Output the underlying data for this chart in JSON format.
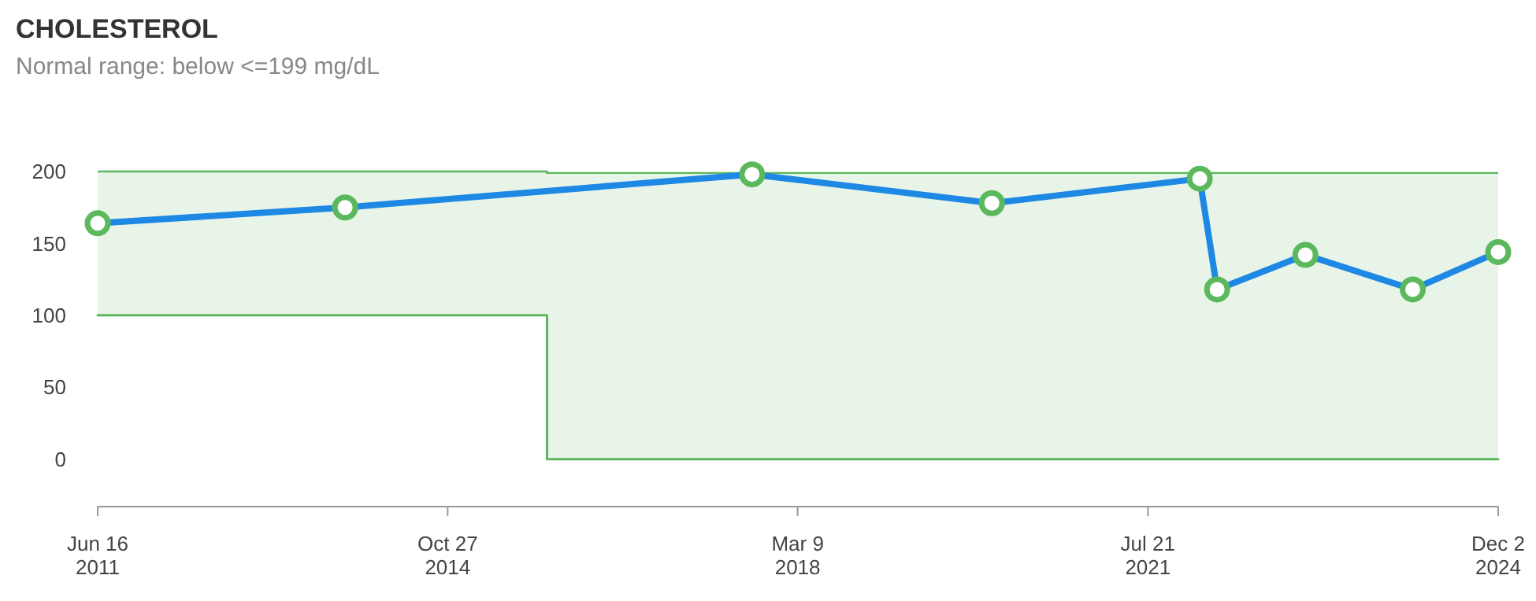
{
  "chart_data": {
    "type": "line",
    "title": "CHOLESTEROL",
    "subtitle": "Normal range: below <=199 mg/dL",
    "xlim": [
      "2011-06-16",
      "2024-12-02"
    ],
    "xticks": [
      {
        "value": "2011-06-16",
        "label": "Jun 16\n2011"
      },
      {
        "value": "2014-10-27",
        "label": "Oct 27\n2014"
      },
      {
        "value": "2018-03-09",
        "label": "Mar 9\n2018"
      },
      {
        "value": "2021-07-21",
        "label": "Jul 21\n2021"
      },
      {
        "value": "2024-12-02",
        "label": "Dec 2\n2024"
      }
    ],
    "ylim": [
      -33,
      200
    ],
    "yticks": [
      0,
      50,
      100,
      150,
      200
    ],
    "grid": false,
    "line_style": "solid",
    "series": [
      {
        "color": "#5cb85c",
        "marker": "none",
        "x": [
          "2011-06-16",
          "2015-10-11",
          "2015-10-11",
          "2024-12-02"
        ],
        "values": [
          100,
          100,
          0,
          0
        ],
        "lower": [
          100,
          100,
          0,
          0
        ],
        "upper": [
          200,
          200,
          199,
          199
        ]
      },
      {
        "color": "#1e88e5",
        "marker": "circle",
        "x": [
          "2011-06-16",
          "2013-11-01",
          "2017-09-30",
          "2020-01-20",
          "2022-01-19",
          "2022-03-21",
          "2023-01-25",
          "2024-02-06",
          "2024-12-02"
        ],
        "values": [
          164,
          175,
          198,
          178,
          195,
          118,
          142,
          118,
          144
        ]
      }
    ]
  }
}
